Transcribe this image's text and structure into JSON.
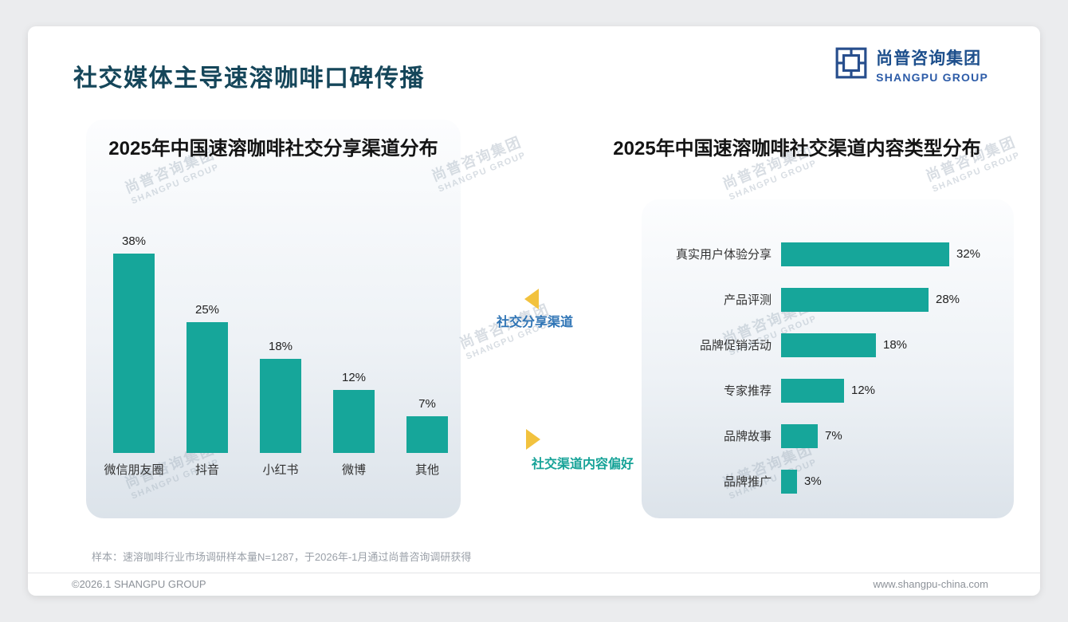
{
  "header": {
    "title": "社交媒体主导速溶咖啡口碑传播",
    "logo_cn": "尚普咨询集团",
    "logo_en": "SHANGPU GROUP"
  },
  "watermark": {
    "cn": "尚普咨询集团",
    "en": "SHANGPU GROUP"
  },
  "annotations": {
    "share_channel": "社交分享渠道",
    "content_pref": "社交渠道内容偏好"
  },
  "colors": {
    "bar": "#16a69a",
    "accent_arrow": "#f2c23e",
    "share_channel_text": "#2e74b5",
    "content_pref_text": "#17a398",
    "title_text": "#15465a",
    "logo_navy": "#1d4f8c"
  },
  "chart_data": [
    {
      "type": "bar",
      "orientation": "vertical",
      "title": "2025年中国速溶咖啡社交分享渠道分布",
      "categories": [
        "微信朋友圈",
        "抖音",
        "小红书",
        "微博",
        "其他"
      ],
      "values": [
        38,
        25,
        18,
        12,
        7
      ],
      "unit": "%",
      "ylim": [
        0,
        40
      ],
      "grid": false,
      "bar_color": "#16a69a"
    },
    {
      "type": "bar",
      "orientation": "horizontal",
      "title": "2025年中国速溶咖啡社交渠道内容类型分布",
      "categories": [
        "真实用户体验分享",
        "产品评测",
        "品牌促销活动",
        "专家推荐",
        "品牌故事",
        "品牌推广"
      ],
      "values": [
        32,
        28,
        18,
        12,
        7,
        3
      ],
      "unit": "%",
      "xlim": [
        0,
        35
      ],
      "grid": false,
      "bar_color": "#16a69a"
    }
  ],
  "footnote": "样本：速溶咖啡行业市场调研样本量N=1287，于2026年-1月通过尚普咨询调研获得",
  "footer": {
    "left": "©2026.1 SHANGPU GROUP",
    "right": "www.shangpu-china.com"
  }
}
